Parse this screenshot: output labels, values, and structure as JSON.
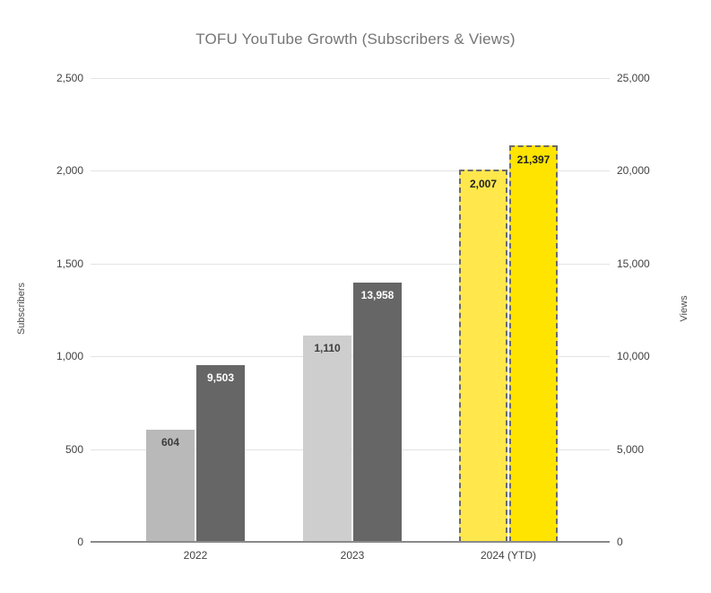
{
  "title": "TOFU YouTube Growth (Subscribers & Views)",
  "chart_data": {
    "type": "bar",
    "title": "TOFU YouTube Growth (Subscribers & Views)",
    "categories": [
      "2022",
      "2023",
      "2024 (YTD)"
    ],
    "series": [
      {
        "name": "Subscribers",
        "axis": "left",
        "values": [
          604,
          1110,
          2007
        ],
        "labels": [
          "604",
          "1,110",
          "2,007"
        ]
      },
      {
        "name": "Views",
        "axis": "right",
        "values": [
          9503,
          13958,
          21397
        ],
        "labels": [
          "9,503",
          "13,958",
          "21,397"
        ]
      }
    ],
    "left_axis": {
      "title": "Subscribers",
      "min": 0,
      "max": 2500,
      "ticks": [
        "0",
        "500",
        "1,000",
        "1,500",
        "2,000",
        "2,500"
      ]
    },
    "right_axis": {
      "title": "Views",
      "min": 0,
      "max": 25000,
      "ticks": [
        "0",
        "5,000",
        "10,000",
        "15,000",
        "20,000",
        "25,000"
      ]
    },
    "highlight_category": "2024 (YTD)",
    "grid": true,
    "legend": "none"
  },
  "colors": {
    "subs_fill": [
      "#b9b9b9",
      "#cecece",
      "#ffe74c"
    ],
    "views_fill": [
      "#666666",
      "#666666",
      "#ffe400"
    ],
    "subs_label_color": [
      "#3d3d3d",
      "#3d3d3d",
      "#212121"
    ],
    "views_label_color": [
      "#ffffff",
      "#ffffff",
      "#212121"
    ],
    "highlight_border": "#6b6b6b",
    "gridline": "#e3e3e3",
    "baseline": "#8a8a8a",
    "title_color": "#757575",
    "tick_color": "#424242"
  }
}
